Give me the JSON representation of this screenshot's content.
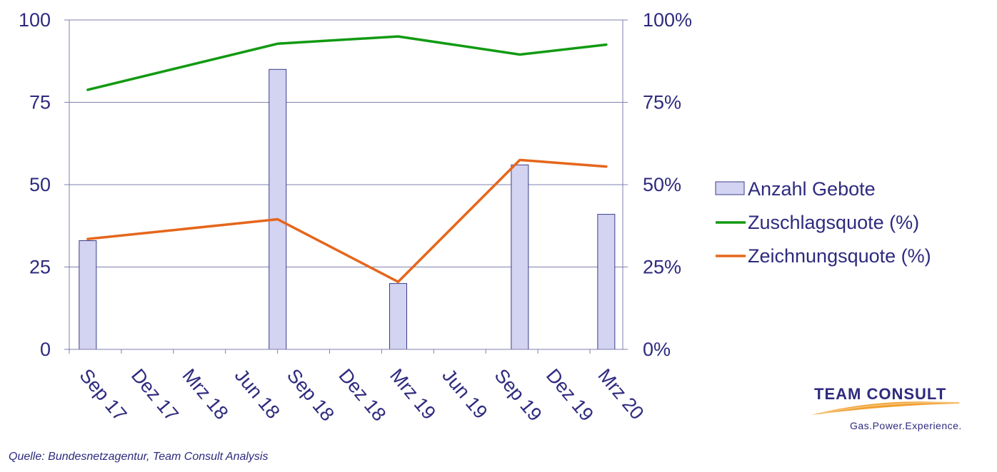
{
  "chart_data": {
    "type": "bar+line",
    "categories": [
      "Sep 17",
      "Dez 17",
      "Mrz 18",
      "Jun 18",
      "Sep 18",
      "Dez 18",
      "Mrz 19",
      "Jun 19",
      "Sep 19",
      "Dez 19",
      "Mrz 20"
    ],
    "x_dates": [
      "2017-09-15",
      "2017-12-15",
      "2018-03-15",
      "2018-06-15",
      "2018-09-15",
      "2018-12-15",
      "2019-03-15",
      "2019-06-15",
      "2019-09-15",
      "2019-12-15",
      "2020-03-15"
    ],
    "y_left": {
      "range": [
        0,
        100
      ],
      "ticks": [
        "0",
        "25",
        "50",
        "75",
        "100"
      ]
    },
    "y_right": {
      "range": [
        0,
        100
      ],
      "ticks": [
        "0%",
        "25%",
        "50%",
        "75%",
        "100%"
      ]
    },
    "series": [
      {
        "name": "Anzahl Gebote",
        "type": "bar",
        "axis": "left",
        "color": "#d3d3f2",
        "points": [
          {
            "date": "2017-09-01",
            "value": 33
          },
          {
            "date": "2018-08-01",
            "value": 85
          },
          {
            "date": "2019-03-01",
            "value": 20
          },
          {
            "date": "2019-10-01",
            "value": 56
          },
          {
            "date": "2020-03-01",
            "value": 41
          }
        ]
      },
      {
        "name": "Zuschlagsquote (%)",
        "type": "line",
        "axis": "right",
        "color": "#119a11",
        "points": [
          {
            "date": "2017-09-01",
            "value": 78.8
          },
          {
            "date": "2018-08-01",
            "value": 92.8
          },
          {
            "date": "2019-03-01",
            "value": 95
          },
          {
            "date": "2019-10-01",
            "value": 89.5
          },
          {
            "date": "2020-03-01",
            "value": 92.5
          }
        ]
      },
      {
        "name": "Zeichnungsquote (%)",
        "type": "line",
        "axis": "right",
        "color": "#e5661b",
        "points": [
          {
            "date": "2017-09-01",
            "value": 33.5
          },
          {
            "date": "2018-08-01",
            "value": 39.5
          },
          {
            "date": "2019-03-01",
            "value": 20.5
          },
          {
            "date": "2019-10-01",
            "value": 57.5
          },
          {
            "date": "2020-03-01",
            "value": 55.5
          }
        ]
      }
    ],
    "grid": true,
    "legend": "right"
  },
  "footer": {
    "source": "Quelle: Bundesnetzagentur,  Team Consult Analysis"
  },
  "logo": {
    "name": "TEAM CONSULT",
    "tagline": "Gas.Power.Experience."
  },
  "colors": {
    "text": "#2e2a7e",
    "grid": "#7f7fb0",
    "bar_fill": "#d3d3f2",
    "bar_stroke": "#3c3c8c"
  }
}
